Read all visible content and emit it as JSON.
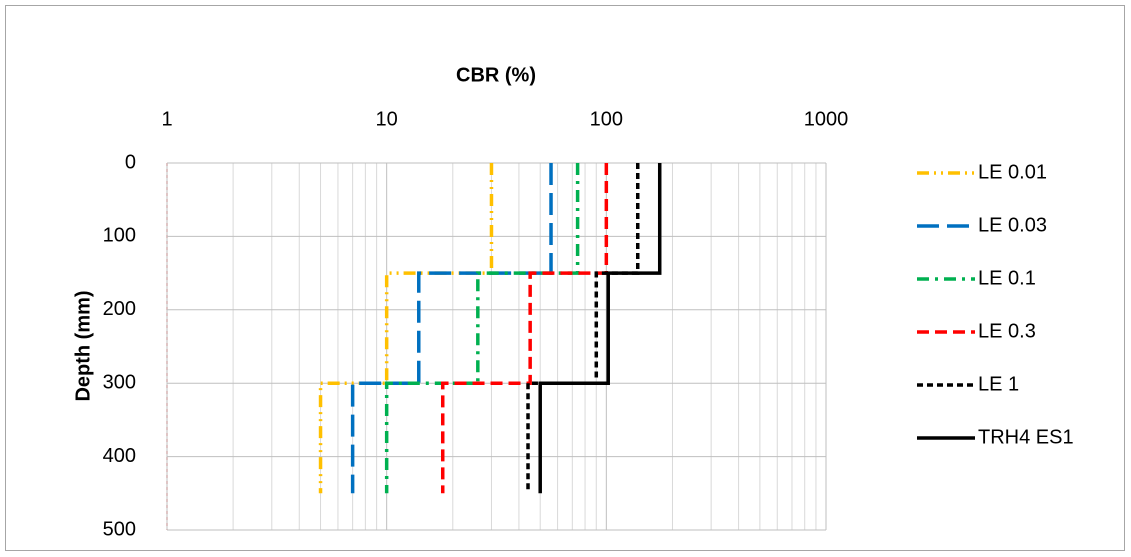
{
  "chart_data": {
    "type": "line",
    "title": "CBR (%)",
    "y_label": "Depth (mm)",
    "x_scale": "log",
    "y_inverted": true,
    "grid": true,
    "minor_grid": true,
    "legend": "right",
    "xlim": [
      1,
      1000
    ],
    "xticks": [
      1,
      10,
      100,
      1000
    ],
    "ylim": [
      0,
      500
    ],
    "yticks": [
      0,
      100,
      200,
      300,
      400,
      500
    ],
    "series": [
      {
        "name": "LE 0.01",
        "color": "#ffc000",
        "dash": "dashdotdot",
        "x": [
          30,
          30,
          10,
          10,
          5,
          5
        ],
        "values": [
          0,
          150,
          150,
          300,
          300,
          450
        ]
      },
      {
        "name": "LE 0.03",
        "color": "#0070c0",
        "dash": "longdash",
        "x": [
          56,
          56,
          14,
          14,
          7,
          7
        ],
        "values": [
          0,
          150,
          150,
          300,
          300,
          450
        ]
      },
      {
        "name": "LE 0.1",
        "color": "#00b050",
        "dash": "dashdot",
        "x": [
          74,
          74,
          26,
          26,
          10,
          10
        ],
        "values": [
          0,
          150,
          150,
          300,
          300,
          450
        ]
      },
      {
        "name": "LE 0.3",
        "color": "#ff0000",
        "dash": "dash",
        "x": [
          100,
          100,
          45,
          45,
          18,
          18
        ],
        "values": [
          0,
          150,
          150,
          300,
          300,
          450
        ]
      },
      {
        "name": "LE 1",
        "color": "#000000",
        "dash": "shortdash",
        "x": [
          139,
          139,
          90,
          90,
          44,
          44
        ],
        "values": [
          0,
          150,
          150,
          300,
          300,
          450
        ]
      },
      {
        "name": "TRH4 ES1",
        "color": "#000000",
        "dash": "solid",
        "x": [
          175,
          175,
          102,
          102,
          50,
          50
        ],
        "values": [
          0,
          150,
          150,
          300,
          300,
          450
        ]
      }
    ]
  }
}
